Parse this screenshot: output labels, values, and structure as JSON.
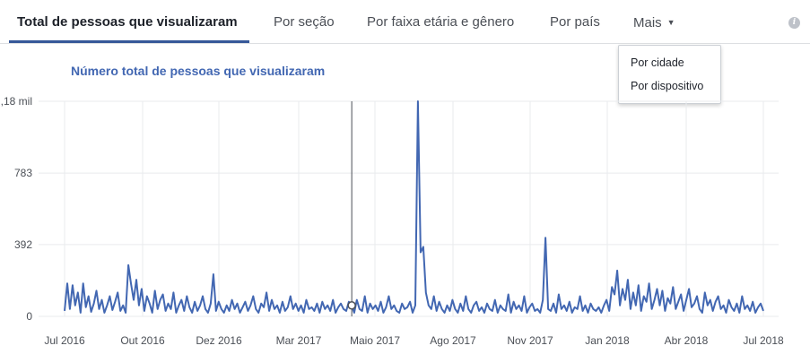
{
  "tabs": [
    {
      "label": "Total de pessoas que visualizaram",
      "active": true
    },
    {
      "label": "Por seção",
      "active": false
    },
    {
      "label": "Por faixa etária e gênero",
      "active": false
    },
    {
      "label": "Por país",
      "active": false
    }
  ],
  "more_tab": {
    "label": "Mais",
    "caret": "▼"
  },
  "info_icon": {
    "glyph": "i",
    "icon": "info-icon"
  },
  "dropdown": {
    "items": [
      "Por cidade",
      "Por dispositivo"
    ]
  },
  "colors": {
    "accent": "#4267b2",
    "line": "#4267b2",
    "grid": "#e9ebee",
    "tab_underline": "#365899"
  },
  "chart_data": {
    "type": "line",
    "title": "Número total de pessoas que visualizaram",
    "xlabel": "",
    "ylabel": "",
    "y_tick_labels": [
      "0",
      "392",
      "783",
      ",18 mil"
    ],
    "y_tick_values": [
      0,
      392,
      783,
      1175
    ],
    "ylim": [
      0,
      1175
    ],
    "grid": true,
    "x_tick_labels": [
      "Jul 2016",
      "Out 2016",
      "Dez 2016",
      "Mar 2017",
      "Maio 2017",
      "Ago 2017",
      "Nov 2017",
      "Jan 2018",
      "Abr 2018",
      "Jul 2018"
    ],
    "x_range": [
      "2016-07-01",
      "2018-07-01"
    ],
    "hover_date": "2017-04-27",
    "series": [
      {
        "values": [
          30,
          180,
          40,
          170,
          60,
          130,
          20,
          180,
          50,
          110,
          25,
          70,
          140,
          40,
          90,
          20,
          60,
          110,
          35,
          80,
          130,
          30,
          60,
          20,
          280,
          180,
          90,
          200,
          60,
          150,
          30,
          110,
          70,
          20,
          140,
          40,
          90,
          120,
          30,
          70,
          40,
          130,
          20,
          60,
          90,
          30,
          110,
          50,
          20,
          80,
          30,
          60,
          110,
          40,
          20,
          70,
          230,
          30,
          80,
          40,
          20,
          60,
          30,
          90,
          40,
          70,
          20,
          50,
          80,
          30,
          60,
          110,
          40,
          20,
          70,
          50,
          130,
          30,
          90,
          40,
          60,
          20,
          80,
          30,
          50,
          110,
          40,
          70,
          30,
          60,
          20,
          90,
          40,
          50,
          30,
          70,
          20,
          80,
          40,
          60,
          30,
          90,
          20,
          50,
          70,
          40,
          30,
          80,
          60,
          20,
          90,
          40,
          30,
          110,
          20,
          70,
          40,
          60,
          30,
          80,
          20,
          50,
          110,
          40,
          60,
          30,
          20,
          70,
          40,
          50,
          80,
          20,
          60,
          1175,
          350,
          380,
          130,
          60,
          40,
          110,
          30,
          80,
          40,
          20,
          60,
          30,
          90,
          40,
          20,
          70,
          30,
          110,
          40,
          20,
          60,
          80,
          30,
          50,
          20,
          70,
          40,
          30,
          90,
          20,
          60,
          40,
          30,
          120,
          20,
          80,
          40,
          60,
          30,
          110,
          20,
          50,
          70,
          30,
          40,
          20,
          90,
          430,
          40,
          30,
          70,
          20,
          120,
          40,
          60,
          30,
          80,
          20,
          50,
          40,
          110,
          30,
          60,
          20,
          70,
          40,
          30,
          50,
          20,
          60,
          90,
          30,
          160,
          120,
          250,
          60,
          150,
          90,
          200,
          40,
          130,
          60,
          170,
          30,
          110,
          80,
          180,
          40,
          90,
          150,
          60,
          140,
          30,
          100,
          70,
          160,
          40,
          80,
          120,
          30,
          90,
          150,
          50,
          70,
          110,
          40,
          20,
          130,
          60,
          90,
          30,
          80,
          110,
          40,
          60,
          20,
          90,
          50,
          30,
          70,
          20,
          110,
          40,
          60,
          30,
          80,
          20,
          50,
          70,
          30
        ]
      }
    ]
  }
}
